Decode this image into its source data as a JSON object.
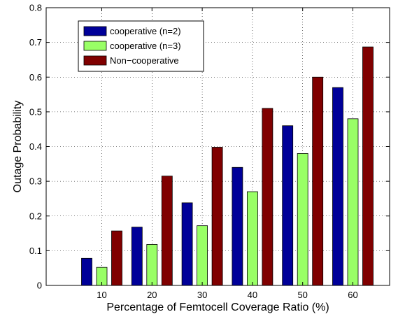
{
  "chart_data": {
    "type": "bar",
    "xlabel": "Percentage of Femtocell Coverage Ratio (%)",
    "ylabel": "Outage Probability",
    "categories": [
      "10",
      "20",
      "30",
      "40",
      "50",
      "60"
    ],
    "ylim": [
      0,
      0.8
    ],
    "yticks": [
      "0",
      "0.1",
      "0.2",
      "0.3",
      "0.4",
      "0.5",
      "0.6",
      "0.7",
      "0.8"
    ],
    "grid": true,
    "legend_position": "top-left",
    "series": [
      {
        "name": "cooperative (n=2)",
        "color": "#000099",
        "values": [
          0.078,
          0.168,
          0.238,
          0.34,
          0.46,
          0.57
        ]
      },
      {
        "name": "cooperative (n=3)",
        "color": "#99ff66",
        "values": [
          0.052,
          0.118,
          0.172,
          0.27,
          0.38,
          0.48
        ]
      },
      {
        "name": "Non−cooperative",
        "color": "#800000",
        "values": [
          0.157,
          0.315,
          0.398,
          0.51,
          0.6,
          0.687
        ]
      }
    ]
  }
}
